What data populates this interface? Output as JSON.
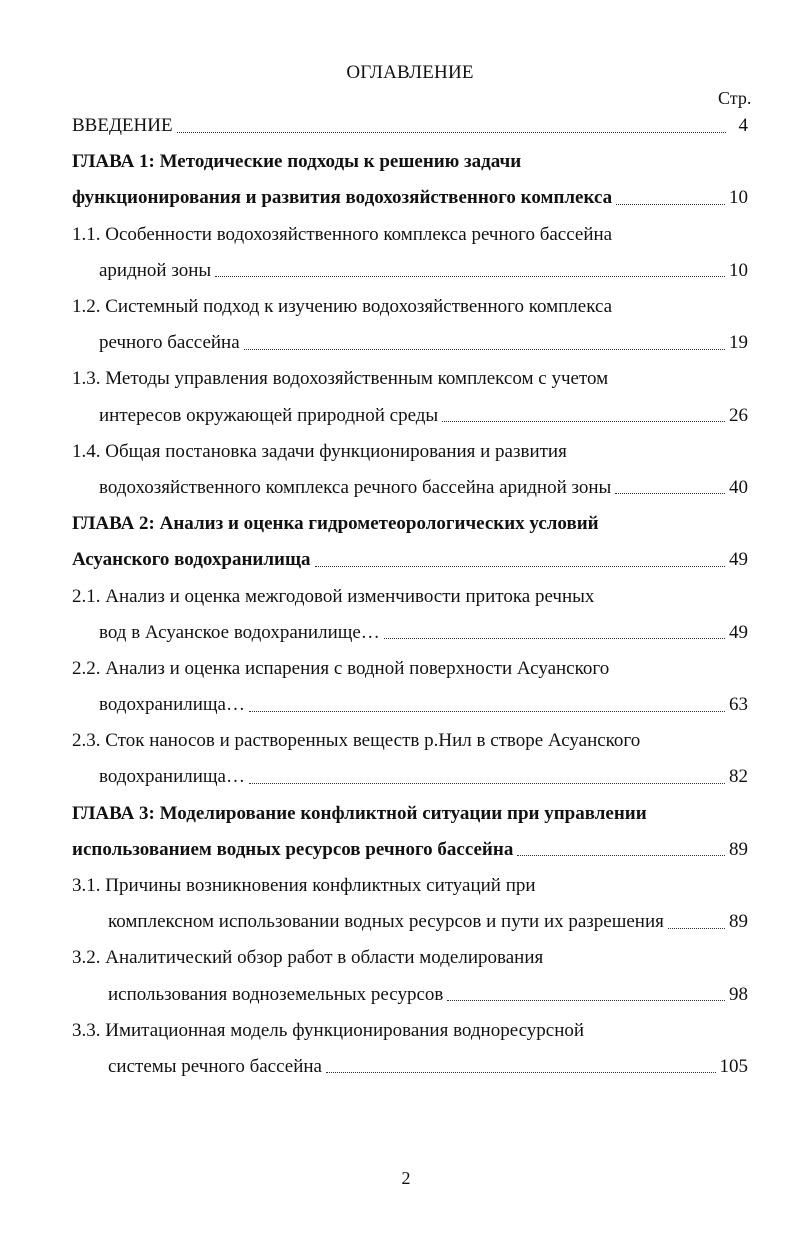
{
  "title": "ОГЛАВЛЕНИЕ",
  "page_column_label": "Стр.",
  "entries": [
    {
      "bold": false,
      "lines": [
        {
          "text": "ВВЕДЕНИЕ",
          "indent": 0
        }
      ],
      "page": "4"
    },
    {
      "bold": true,
      "lines": [
        {
          "text": "ГЛАВА 1: Методические подходы к решению задачи",
          "indent": 0
        },
        {
          "text": "функционирования и развития водохозяйственного комплекса",
          "indent": 0
        }
      ],
      "page": "10"
    },
    {
      "bold": false,
      "lines": [
        {
          "text": "1.1. Особенности водохозяйственного комплекса речного бассейна",
          "indent": 0
        },
        {
          "text": "аридной зоны",
          "indent": 1
        }
      ],
      "page": "10"
    },
    {
      "bold": false,
      "lines": [
        {
          "text": "1.2. Системный подход к изучению водохозяйственного комплекса",
          "indent": 0
        },
        {
          "text": "речного бассейна",
          "indent": 1
        }
      ],
      "page": "19"
    },
    {
      "bold": false,
      "lines": [
        {
          "text": "1.3. Методы управления водохозяйственным комплексом с учетом",
          "indent": 0
        },
        {
          "text": "интересов окружающей природной среды",
          "indent": 1
        }
      ],
      "page": "26"
    },
    {
      "bold": false,
      "lines": [
        {
          "text": "1.4. Общая постановка задачи функционирования и развития",
          "indent": 0
        },
        {
          "text": "водохозяйственного комплекса речного бассейна аридной зоны",
          "indent": 1
        }
      ],
      "page": "40"
    },
    {
      "bold": true,
      "lines": [
        {
          "text": "ГЛАВА 2: Анализ и оценка гидрометеорологических условий",
          "indent": 0
        },
        {
          "text": "Асуанского водохранилища",
          "indent": 0
        }
      ],
      "page": "49"
    },
    {
      "bold": false,
      "lines": [
        {
          "text": "2.1. Анализ и оценка межгодовой изменчивости притока речных",
          "indent": 0
        },
        {
          "text": "вод в Асуанское водохранилище…",
          "indent": 1
        }
      ],
      "page": "49"
    },
    {
      "bold": false,
      "lines": [
        {
          "text": "2.2. Анализ и оценка испарения с водной поверхности Асуанского",
          "indent": 0
        },
        {
          "text": "водохранилища…",
          "indent": 1
        }
      ],
      "page": "63"
    },
    {
      "bold": false,
      "lines": [
        {
          "text": "2.3. Сток наносов и растворенных веществ р.Нил в створе Асуанского",
          "indent": 0
        },
        {
          "text": "водохранилища…",
          "indent": 1
        }
      ],
      "page": "82"
    },
    {
      "bold": true,
      "lines": [
        {
          "text": "ГЛАВА 3: Моделирование конфликтной ситуации при управлении",
          "indent": 0
        },
        {
          "text": "использованием водных ресурсов речного бассейна",
          "indent": 0
        }
      ],
      "page": "89"
    },
    {
      "bold": false,
      "lines": [
        {
          "text": "3.1.  Причины возникновения конфликтных ситуаций при",
          "indent": 0
        },
        {
          "text": "комплексном использовании водных ресурсов и пути их разрешения",
          "indent": 2
        }
      ],
      "page": "89"
    },
    {
      "bold": false,
      "lines": [
        {
          "text": "3.2.  Аналитический обзор работ в области моделирования",
          "indent": 0
        },
        {
          "text": "использования водноземельных ресурсов",
          "indent": 2
        }
      ],
      "page": "98"
    },
    {
      "bold": false,
      "lines": [
        {
          "text": "3.3. Имитационная модель функционирования водноресурсной",
          "indent": 0
        },
        {
          "text": "системы речного бассейна",
          "indent": 2
        }
      ],
      "page": "105"
    }
  ],
  "page_number": "2"
}
